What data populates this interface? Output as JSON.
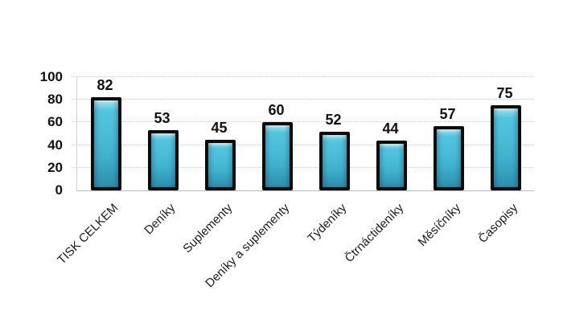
{
  "chart_data": {
    "type": "bar",
    "title": "",
    "xlabel": "",
    "ylabel": "",
    "categories": [
      "TISK CELKEM",
      "Deníky",
      "Suplementy",
      "Deníky a suplementy",
      "Týdeníky",
      "Čtrnáctideníky",
      "Měsíčníky",
      "Časopisy"
    ],
    "values": [
      82,
      53,
      45,
      60,
      52,
      44,
      57,
      75
    ],
    "ylim": [
      0,
      100
    ],
    "yticks": [
      0,
      20,
      40,
      60,
      80,
      100
    ],
    "grid": "horizontal-dotted",
    "legend_position": "none",
    "bar_fill_color": "#44BCD8",
    "bar_highlight_color": "#A9E5F1",
    "bar_shadow_color": "#2D90AE",
    "bar_border_color": "#0B0B0B",
    "gridline_color": "#C9C9C9",
    "axis_line_color": "#B8B8B8",
    "text_color": "#111111",
    "background_color": "#FFFFFF"
  }
}
